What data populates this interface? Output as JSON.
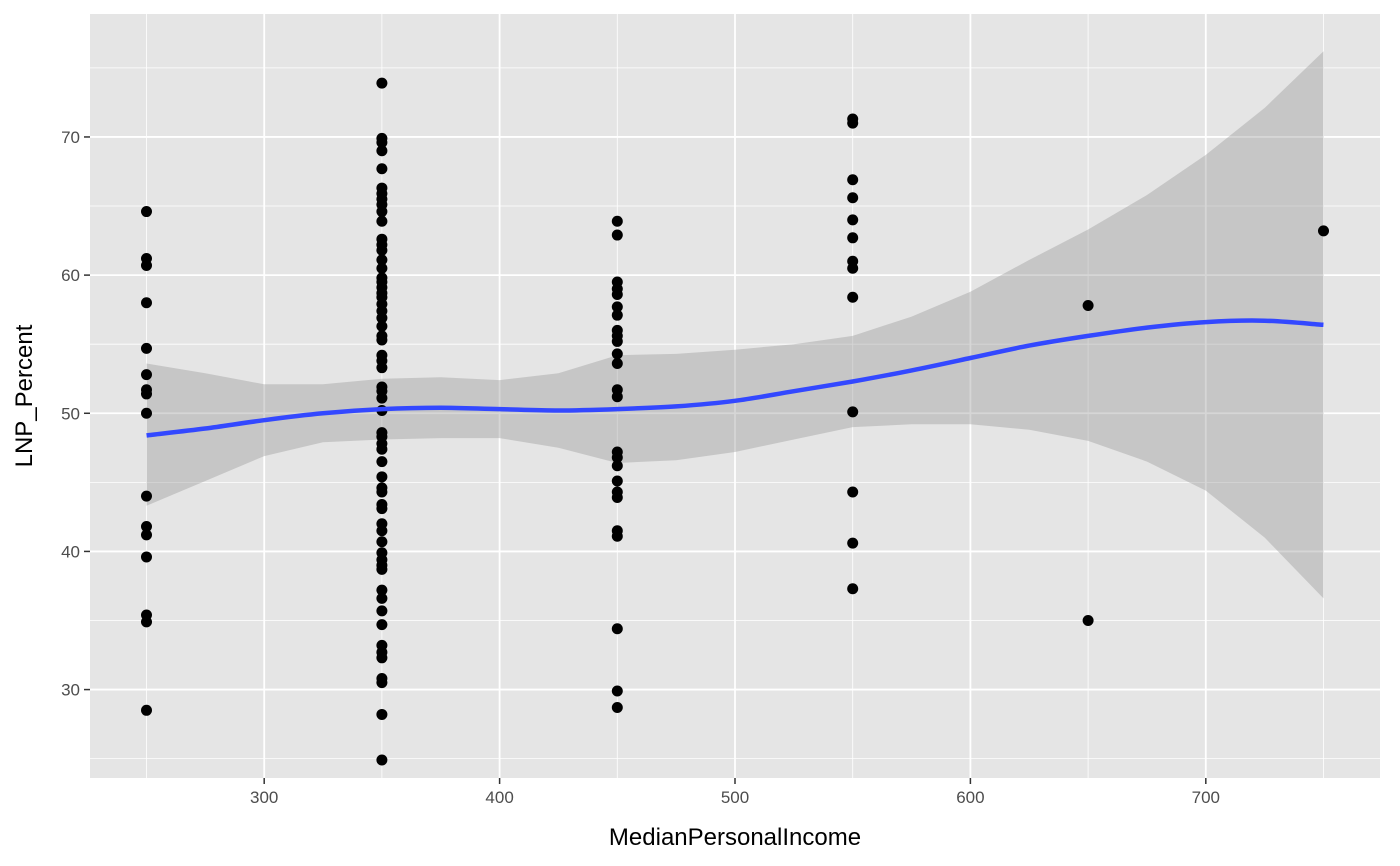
{
  "chart_data": {
    "type": "scatter",
    "xlabel": "MedianPersonalIncome",
    "ylabel": "LNP_Percent",
    "xlim": [
      226,
      774
    ],
    "ylim": [
      23.6,
      78.9
    ],
    "x_ticks": [
      300,
      400,
      500,
      600,
      700
    ],
    "y_ticks": [
      30,
      40,
      50,
      60,
      70
    ],
    "grid": true,
    "colors": {
      "panel": "#e5e5e5",
      "grid": "#ffffff",
      "point": "#000000",
      "smooth_line": "#3348ff",
      "ribbon": "#999999"
    },
    "points": [
      {
        "x": 250,
        "y": 64.6
      },
      {
        "x": 250,
        "y": 61.2
      },
      {
        "x": 250,
        "y": 60.7
      },
      {
        "x": 250,
        "y": 58.0
      },
      {
        "x": 250,
        "y": 54.7
      },
      {
        "x": 250,
        "y": 52.8
      },
      {
        "x": 250,
        "y": 51.7
      },
      {
        "x": 250,
        "y": 51.4
      },
      {
        "x": 250,
        "y": 50.0
      },
      {
        "x": 250,
        "y": 44.0
      },
      {
        "x": 250,
        "y": 41.8
      },
      {
        "x": 250,
        "y": 41.2
      },
      {
        "x": 250,
        "y": 39.6
      },
      {
        "x": 250,
        "y": 35.4
      },
      {
        "x": 250,
        "y": 34.9
      },
      {
        "x": 250,
        "y": 28.5
      },
      {
        "x": 350,
        "y": 73.9
      },
      {
        "x": 350,
        "y": 69.9
      },
      {
        "x": 350,
        "y": 69.6
      },
      {
        "x": 350,
        "y": 69.0
      },
      {
        "x": 350,
        "y": 67.7
      },
      {
        "x": 350,
        "y": 66.3
      },
      {
        "x": 350,
        "y": 65.9
      },
      {
        "x": 350,
        "y": 65.5
      },
      {
        "x": 350,
        "y": 65.1
      },
      {
        "x": 350,
        "y": 64.6
      },
      {
        "x": 350,
        "y": 63.9
      },
      {
        "x": 350,
        "y": 62.6
      },
      {
        "x": 350,
        "y": 62.2
      },
      {
        "x": 350,
        "y": 61.8
      },
      {
        "x": 350,
        "y": 61.1
      },
      {
        "x": 350,
        "y": 60.5
      },
      {
        "x": 350,
        "y": 59.8
      },
      {
        "x": 350,
        "y": 59.5
      },
      {
        "x": 350,
        "y": 59.1
      },
      {
        "x": 350,
        "y": 58.7
      },
      {
        "x": 350,
        "y": 58.4
      },
      {
        "x": 350,
        "y": 57.9
      },
      {
        "x": 350,
        "y": 57.4
      },
      {
        "x": 350,
        "y": 56.9
      },
      {
        "x": 350,
        "y": 56.3
      },
      {
        "x": 350,
        "y": 55.6
      },
      {
        "x": 350,
        "y": 55.3
      },
      {
        "x": 350,
        "y": 54.2
      },
      {
        "x": 350,
        "y": 53.8
      },
      {
        "x": 350,
        "y": 53.3
      },
      {
        "x": 350,
        "y": 51.9
      },
      {
        "x": 350,
        "y": 51.6
      },
      {
        "x": 350,
        "y": 51.1
      },
      {
        "x": 350,
        "y": 50.2
      },
      {
        "x": 350,
        "y": 48.6
      },
      {
        "x": 350,
        "y": 48.3
      },
      {
        "x": 350,
        "y": 47.8
      },
      {
        "x": 350,
        "y": 47.4
      },
      {
        "x": 350,
        "y": 46.5
      },
      {
        "x": 350,
        "y": 45.4
      },
      {
        "x": 350,
        "y": 44.6
      },
      {
        "x": 350,
        "y": 44.3
      },
      {
        "x": 350,
        "y": 43.4
      },
      {
        "x": 350,
        "y": 43.1
      },
      {
        "x": 350,
        "y": 42.0
      },
      {
        "x": 350,
        "y": 41.5
      },
      {
        "x": 350,
        "y": 40.7
      },
      {
        "x": 350,
        "y": 39.9
      },
      {
        "x": 350,
        "y": 39.4
      },
      {
        "x": 350,
        "y": 39.0
      },
      {
        "x": 350,
        "y": 38.7
      },
      {
        "x": 350,
        "y": 37.2
      },
      {
        "x": 350,
        "y": 36.6
      },
      {
        "x": 350,
        "y": 35.7
      },
      {
        "x": 350,
        "y": 34.7
      },
      {
        "x": 350,
        "y": 33.2
      },
      {
        "x": 350,
        "y": 32.7
      },
      {
        "x": 350,
        "y": 32.3
      },
      {
        "x": 350,
        "y": 30.8
      },
      {
        "x": 350,
        "y": 30.5
      },
      {
        "x": 350,
        "y": 28.2
      },
      {
        "x": 350,
        "y": 24.9
      },
      {
        "x": 450,
        "y": 63.9
      },
      {
        "x": 450,
        "y": 62.9
      },
      {
        "x": 450,
        "y": 59.5
      },
      {
        "x": 450,
        "y": 59.0
      },
      {
        "x": 450,
        "y": 58.6
      },
      {
        "x": 450,
        "y": 57.7
      },
      {
        "x": 450,
        "y": 57.1
      },
      {
        "x": 450,
        "y": 56.0
      },
      {
        "x": 450,
        "y": 55.6
      },
      {
        "x": 450,
        "y": 55.2
      },
      {
        "x": 450,
        "y": 54.3
      },
      {
        "x": 450,
        "y": 53.6
      },
      {
        "x": 450,
        "y": 51.7
      },
      {
        "x": 450,
        "y": 51.2
      },
      {
        "x": 450,
        "y": 47.2
      },
      {
        "x": 450,
        "y": 46.8
      },
      {
        "x": 450,
        "y": 46.2
      },
      {
        "x": 450,
        "y": 45.1
      },
      {
        "x": 450,
        "y": 44.3
      },
      {
        "x": 450,
        "y": 43.9
      },
      {
        "x": 450,
        "y": 41.5
      },
      {
        "x": 450,
        "y": 41.1
      },
      {
        "x": 450,
        "y": 34.4
      },
      {
        "x": 450,
        "y": 29.9
      },
      {
        "x": 450,
        "y": 28.7
      },
      {
        "x": 550,
        "y": 71.3
      },
      {
        "x": 550,
        "y": 71.0
      },
      {
        "x": 550,
        "y": 66.9
      },
      {
        "x": 550,
        "y": 65.6
      },
      {
        "x": 550,
        "y": 64.0
      },
      {
        "x": 550,
        "y": 62.7
      },
      {
        "x": 550,
        "y": 61.0
      },
      {
        "x": 550,
        "y": 60.5
      },
      {
        "x": 550,
        "y": 58.4
      },
      {
        "x": 550,
        "y": 50.1
      },
      {
        "x": 550,
        "y": 44.3
      },
      {
        "x": 550,
        "y": 40.6
      },
      {
        "x": 550,
        "y": 37.3
      },
      {
        "x": 650,
        "y": 57.8
      },
      {
        "x": 650,
        "y": 35.0
      },
      {
        "x": 750,
        "y": 63.2
      }
    ],
    "smooth": {
      "x": [
        250,
        275,
        300,
        325,
        350,
        375,
        400,
        425,
        450,
        475,
        500,
        525,
        550,
        575,
        600,
        625,
        650,
        675,
        700,
        725,
        750
      ],
      "y": [
        48.4,
        48.9,
        49.5,
        50.0,
        50.3,
        50.4,
        50.3,
        50.2,
        50.3,
        50.5,
        50.9,
        51.6,
        52.3,
        53.1,
        54.0,
        54.9,
        55.6,
        56.2,
        56.6,
        56.7,
        56.4
      ],
      "ymin": [
        43.3,
        45.1,
        46.9,
        47.9,
        48.1,
        48.2,
        48.2,
        47.5,
        46.4,
        46.6,
        47.2,
        48.1,
        49.0,
        49.2,
        49.2,
        48.8,
        48.0,
        46.5,
        44.4,
        41.0,
        36.6
      ],
      "ymax": [
        53.6,
        52.9,
        52.1,
        52.1,
        52.5,
        52.6,
        52.4,
        52.9,
        54.2,
        54.3,
        54.6,
        55.0,
        55.6,
        57.0,
        58.8,
        61.1,
        63.3,
        65.8,
        68.7,
        72.1,
        76.2
      ]
    }
  }
}
